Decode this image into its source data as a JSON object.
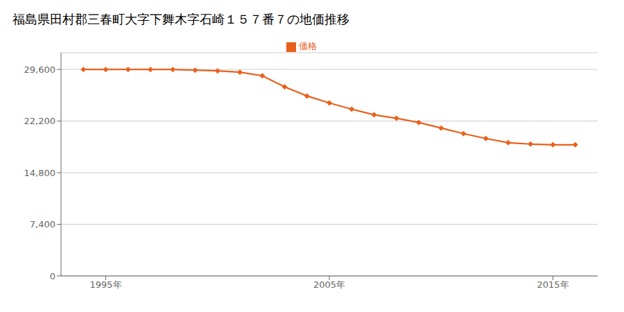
{
  "chart_data": {
    "type": "line",
    "title": "福島県田村郡三春町大字下舞木字石崎１５７番７の地価推移",
    "x": [
      1994,
      1995,
      1996,
      1997,
      1998,
      1999,
      2000,
      2001,
      2002,
      2003,
      2004,
      2005,
      2006,
      2007,
      2008,
      2009,
      2010,
      2011,
      2012,
      2013,
      2014,
      2015,
      2016
    ],
    "series": [
      {
        "name": "価格",
        "color": "#e8601c",
        "marker": "diamond",
        "values": [
          29600,
          29600,
          29600,
          29600,
          29600,
          29500,
          29400,
          29200,
          28700,
          27100,
          25800,
          24800,
          23900,
          23100,
          22600,
          22000,
          21200,
          20400,
          19700,
          19100,
          18900,
          18800,
          18800
        ]
      }
    ],
    "xlim": [
      1993,
      2017
    ],
    "xticks": [
      {
        "value": 1995,
        "label": "1995年"
      },
      {
        "value": 2005,
        "label": "2005年"
      },
      {
        "value": 2015,
        "label": "2015年"
      }
    ],
    "ylim": [
      0,
      32000
    ],
    "yticks": [
      0,
      {
        "value": 7400,
        "label": "7,400"
      },
      {
        "value": 14800,
        "label": "14,800"
      },
      {
        "value": 22200,
        "label": "22,200"
      },
      {
        "value": 29600,
        "label": "29,600"
      }
    ],
    "grid": true,
    "legend": "top"
  }
}
